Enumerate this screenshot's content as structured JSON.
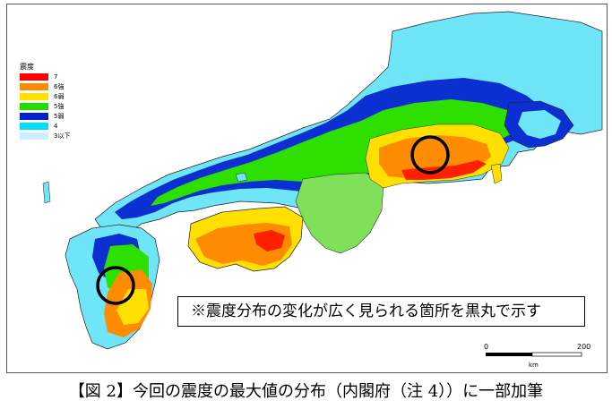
{
  "legend": {
    "title": "震度",
    "items": [
      {
        "label": "7",
        "color": "#ff0000"
      },
      {
        "label": "6強",
        "color": "#ff8c00"
      },
      {
        "label": "6弱",
        "color": "#ffe000"
      },
      {
        "label": "5強",
        "color": "#22dd00"
      },
      {
        "label": "5弱",
        "color": "#0022cc"
      },
      {
        "label": "4",
        "color": "#00ddff"
      },
      {
        "label": "3以下",
        "color": "#cceeff"
      }
    ]
  },
  "note": "※震度分布の変化が広く見られる箇所を黒丸で示す",
  "scale": {
    "start": "0",
    "end": "200",
    "unit": "km"
  },
  "caption": "【図 2】今回の震度の最大値の分布（内閣府（注 4））に一部加筆",
  "colors": {
    "sea": "#ffffff",
    "outline": "#222222",
    "shindo_7": "#ff0000",
    "shindo_6_strong": "#ff8c00",
    "shindo_6_weak": "#ffe000",
    "shindo_5_strong": "#22dd00",
    "shindo_5_weak": "#0022cc",
    "shindo_4": "#00ddff",
    "shindo_3_or_less": "#cceeff"
  }
}
